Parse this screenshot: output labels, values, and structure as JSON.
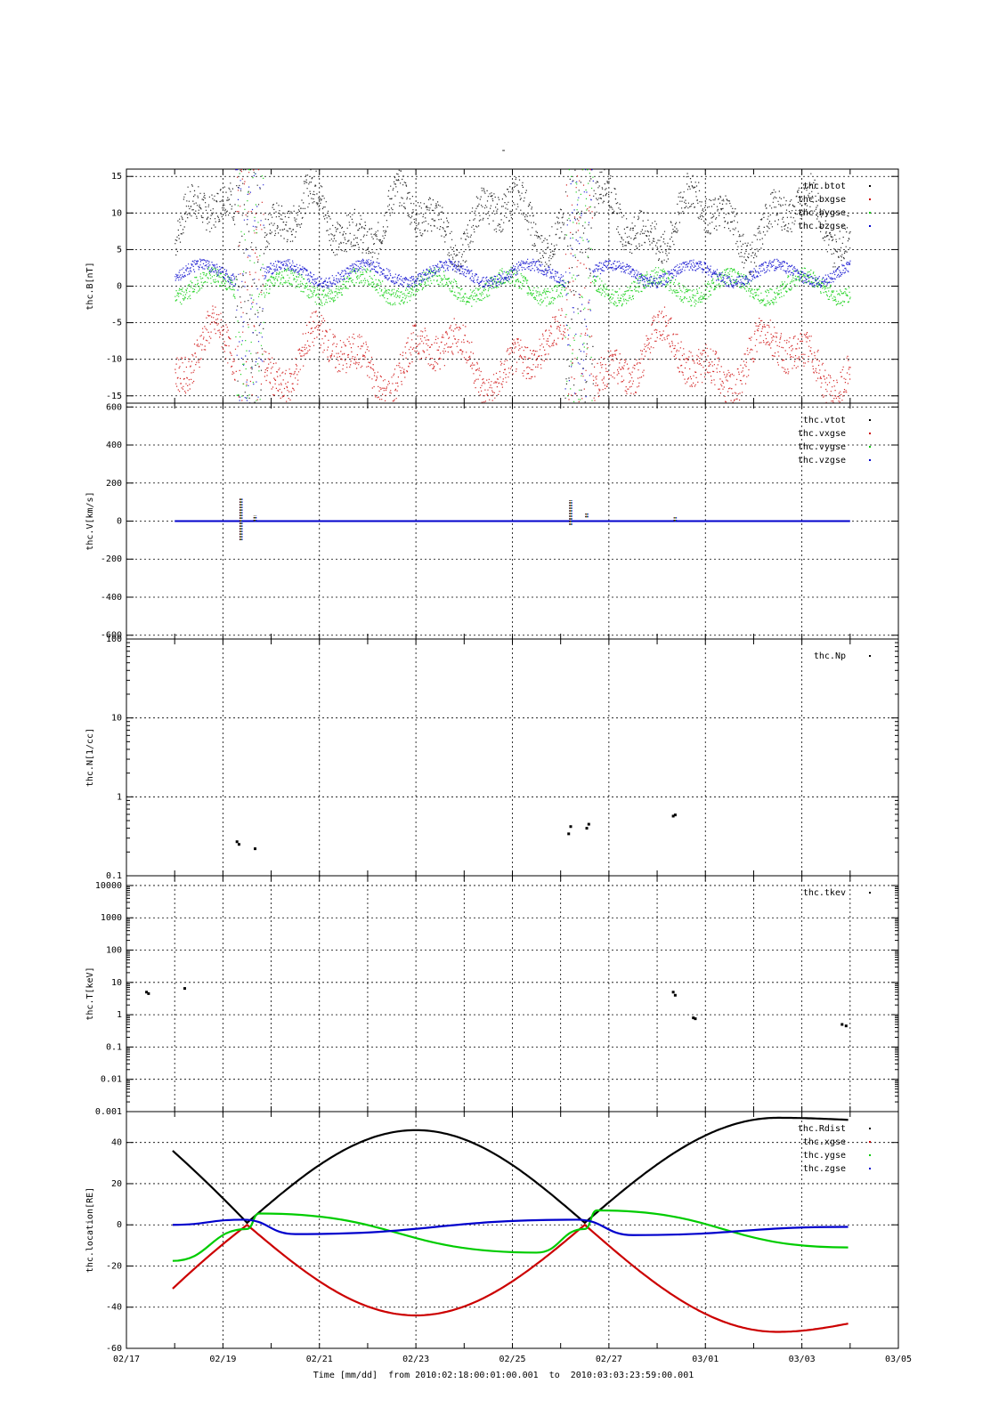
{
  "page": {
    "title": "-"
  },
  "x_axis": {
    "ticks": [
      "02/17",
      "02/19",
      "02/21",
      "02/23",
      "02/25",
      "02/27",
      "03/01",
      "03/03",
      "03/05"
    ],
    "label_prefix": "Time [mm/dd]",
    "label_range": "from 2010:02:18:00:01:00.001  to  2010:03:03:23:59:00.001"
  },
  "chart_data": [
    {
      "type": "scatter",
      "ylabel": "thc.B[nT]",
      "ylim": [
        -16,
        16
      ],
      "yticks": [
        -15,
        -10,
        -5,
        0,
        5,
        10,
        15
      ],
      "xgrid_ticks": [
        "02/17",
        "02/19",
        "02/21",
        "02/23",
        "02/25",
        "02/27",
        "03/01",
        "03/03",
        "03/05"
      ],
      "legend": "top-right",
      "series": [
        {
          "name": "thc.btot",
          "color": "#000000"
        },
        {
          "name": "thc.bxgse",
          "color": "#cc0000"
        },
        {
          "name": "thc.bygse",
          "color": "#00cc00"
        },
        {
          "name": "thc.bzgse",
          "color": "#0000cc"
        }
      ]
    },
    {
      "type": "scatter",
      "ylabel": "thc.V[km/s]",
      "ylim": [
        -620,
        620
      ],
      "yticks": [
        -600,
        -400,
        -200,
        0,
        200,
        400,
        600
      ],
      "xgrid_ticks": [
        "02/17",
        "02/19",
        "02/21",
        "02/23",
        "02/25",
        "02/27",
        "03/01",
        "03/03",
        "03/05"
      ],
      "legend": "top-right",
      "series": [
        {
          "name": "thc.vtot",
          "color": "#000000"
        },
        {
          "name": "thc.vxgse",
          "color": "#cc0000"
        },
        {
          "name": "thc.vygse",
          "color": "#00cc00"
        },
        {
          "name": "thc.vzgse",
          "color": "#0000cc"
        }
      ],
      "bursts": [
        {
          "x": "02/19 09:00",
          "ymin": -100,
          "ymax": 120
        },
        {
          "x": "02/19 16:00",
          "ymin": 0,
          "ymax": 30
        },
        {
          "x": "02/26 05:00",
          "ymin": -20,
          "ymax": 110
        },
        {
          "x": "02/26 13:00",
          "ymin": 20,
          "ymax": 40
        },
        {
          "x": "02/28 09:00",
          "ymin": 0,
          "ymax": 20
        }
      ]
    },
    {
      "type": "scatter",
      "ylabel": "thc.N[1/cc]",
      "yscale": "log",
      "ylim": [
        0.1,
        100
      ],
      "yticks": [
        "0.1",
        "1",
        "10",
        "100"
      ],
      "xgrid_ticks": [
        "02/17",
        "02/19",
        "02/21",
        "02/23",
        "02/25",
        "02/27",
        "03/01",
        "03/03",
        "03/05"
      ],
      "legend": "top-right",
      "series": [
        {
          "name": "thc.Np",
          "color": "#000000",
          "points": [
            {
              "x": "02/19 07:00",
              "y": 0.27
            },
            {
              "x": "02/19 08:00",
              "y": 0.25
            },
            {
              "x": "02/19 16:00",
              "y": 0.22
            },
            {
              "x": "02/26 04:00",
              "y": 0.34
            },
            {
              "x": "02/26 05:00",
              "y": 0.42
            },
            {
              "x": "02/26 13:00",
              "y": 0.4
            },
            {
              "x": "02/26 14:00",
              "y": 0.45
            },
            {
              "x": "02/28 08:00",
              "y": 0.57
            },
            {
              "x": "02/28 09:00",
              "y": 0.59
            }
          ]
        }
      ]
    },
    {
      "type": "scatter",
      "ylabel": "thc.T[keV]",
      "yscale": "log",
      "ylim": [
        0.001,
        20000
      ],
      "yticks": [
        "0.001",
        "0.01",
        "0.1",
        "1",
        "10",
        "100",
        "1000",
        "10000"
      ],
      "xgrid_ticks": [
        "02/17",
        "02/18",
        "02/19",
        "02/20",
        "02/21",
        "02/22",
        "02/23",
        "02/24",
        "02/25",
        "02/26",
        "02/27",
        "02/28",
        "03/01",
        "03/02",
        "03/03",
        "03/04",
        "03/05"
      ],
      "legend": "top-right",
      "series": [
        {
          "name": "thc.tkev",
          "color": "#000000",
          "points": [
            {
              "x": "02/17 10:00",
              "y": 5
            },
            {
              "x": "02/17 11:00",
              "y": 4.5
            },
            {
              "x": "02/18 05:00",
              "y": 6.5
            },
            {
              "x": "02/28 08:00",
              "y": 5
            },
            {
              "x": "02/28 09:00",
              "y": 4
            },
            {
              "x": "02/28 18:00",
              "y": 0.8
            },
            {
              "x": "02/28 19:00",
              "y": 0.75
            },
            {
              "x": "03/03 20:00",
              "y": 0.5
            },
            {
              "x": "03/03 22:00",
              "y": 0.45
            }
          ]
        }
      ]
    },
    {
      "type": "line",
      "ylabel": "thc.location[RE]",
      "ylim": [
        -60,
        55
      ],
      "yticks": [
        -60,
        -40,
        -20,
        0,
        20,
        40
      ],
      "xgrid_ticks": [
        "02/17",
        "02/19",
        "02/21",
        "02/23",
        "02/25",
        "02/27",
        "03/01",
        "03/03",
        "03/05"
      ],
      "legend": "top-right",
      "series": [
        {
          "name": "thc.Rdist",
          "color": "#000000"
        },
        {
          "name": "thc.xgse",
          "color": "#cc0000"
        },
        {
          "name": "thc.ygse",
          "color": "#00cc00"
        },
        {
          "name": "thc.zgse",
          "color": "#0000cc"
        }
      ],
      "orbit": {
        "perigee_days": [
          "02/19 12:00",
          "02/26 12:00"
        ],
        "rdist_apogee": [
          {
            "x": "02/17 23:00",
            "y": 36
          },
          {
            "x": "02/23 00:00",
            "y": 46
          },
          {
            "x": "03/02 12:00",
            "y": 52
          },
          {
            "x": "03/03 23:00",
            "y": 51
          }
        ],
        "xgse_min": [
          {
            "x": "02/17 23:00",
            "y": -31
          },
          {
            "x": "02/23 00:00",
            "y": -44
          },
          {
            "x": "03/02 12:00",
            "y": -52
          },
          {
            "x": "03/03 23:00",
            "y": -48
          }
        ],
        "ygse_points": [
          {
            "x": "02/17 23:00",
            "y": -17.5
          },
          {
            "x": "02/19 12:00",
            "y": -2
          },
          {
            "x": "02/19 18:00",
            "y": 5.5
          },
          {
            "x": "02/25 12:00",
            "y": -13.5
          },
          {
            "x": "02/26 12:00",
            "y": -2
          },
          {
            "x": "02/26 18:00",
            "y": 7
          },
          {
            "x": "03/03 23:00",
            "y": -11
          }
        ],
        "zgse_points": [
          {
            "x": "02/17 23:00",
            "y": 0
          },
          {
            "x": "02/19 10:00",
            "y": 2.5
          },
          {
            "x": "02/20 12:00",
            "y": -4.5
          },
          {
            "x": "02/26 08:00",
            "y": 2.5
          },
          {
            "x": "02/27 12:00",
            "y": -5
          },
          {
            "x": "03/03 23:00",
            "y": -1
          }
        ]
      }
    }
  ]
}
